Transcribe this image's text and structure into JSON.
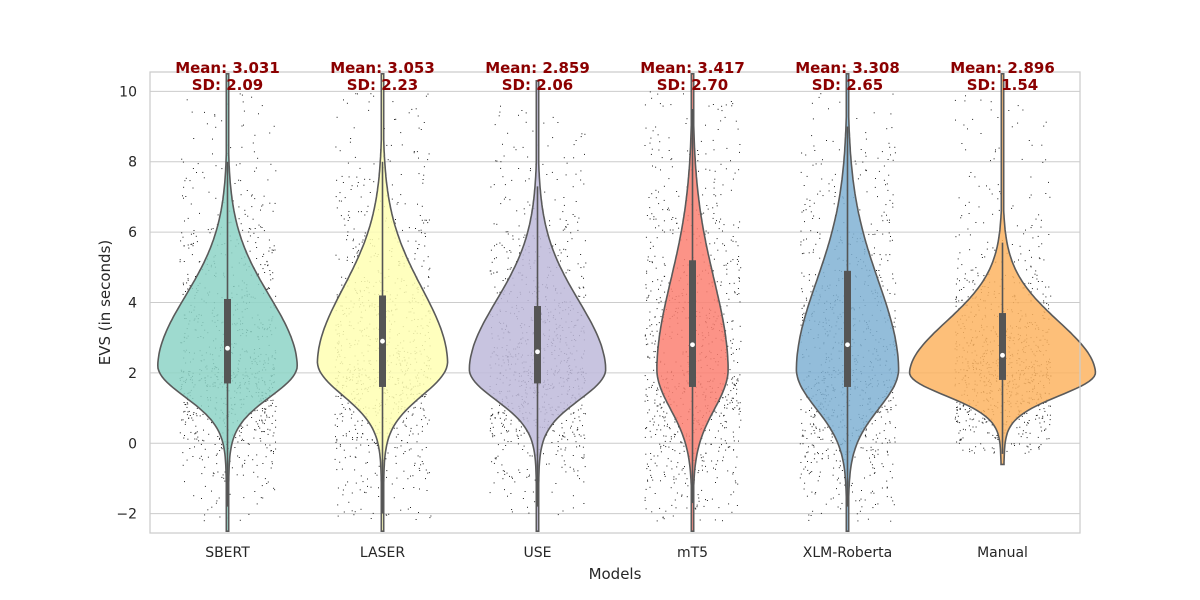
{
  "chart_data": {
    "type": "violin",
    "xlabel": "Models",
    "ylabel": "EVS (in seconds)",
    "ylim": [
      -2.55,
      10.55
    ],
    "yticks": [
      "−2",
      "0",
      "2",
      "4",
      "6",
      "8",
      "10"
    ],
    "grid": true,
    "annotation_color": "#8b0000",
    "categories": [
      "SBERT",
      "LASER",
      "USE",
      "mT5",
      "XLM-Roberta",
      "Manual"
    ],
    "series": [
      {
        "category": "SBERT",
        "color": "#8dd3c7",
        "mean": 3.031,
        "sd": 2.09,
        "mean_label": "Mean: 3.031",
        "sd_label": "SD: 2.09",
        "range": [
          -2.5,
          10.5
        ],
        "q1": 1.7,
        "median": 2.7,
        "q3": 4.1,
        "whisker": [
          -1.8,
          8.0
        ],
        "mode": 2.2,
        "peak_halfwidth": 0.45
      },
      {
        "category": "LASER",
        "color": "#ffffb3",
        "mean": 3.053,
        "sd": 2.23,
        "mean_label": "Mean: 3.053",
        "sd_label": "SD: 2.23",
        "range": [
          -2.5,
          10.5
        ],
        "q1": 1.6,
        "median": 2.9,
        "q3": 4.2,
        "whisker": [
          -2.0,
          8.0
        ],
        "mode": 2.3,
        "peak_halfwidth": 0.42
      },
      {
        "category": "USE",
        "color": "#bebada",
        "mean": 2.859,
        "sd": 2.06,
        "mean_label": "Mean: 2.859",
        "sd_label": "SD: 2.06",
        "range": [
          -2.5,
          10.3
        ],
        "q1": 1.7,
        "median": 2.6,
        "q3": 3.9,
        "whisker": [
          -1.8,
          7.3
        ],
        "mode": 2.1,
        "peak_halfwidth": 0.44
      },
      {
        "category": "mT5",
        "color": "#fb8072",
        "mean": 3.417,
        "sd": 2.7,
        "mean_label": "Mean: 3.417",
        "sd_label": "SD: 2.70",
        "range": [
          -2.5,
          10.5
        ],
        "q1": 1.6,
        "median": 2.8,
        "q3": 5.2,
        "whisker": [
          -1.7,
          9.5
        ],
        "mode": 2.1,
        "peak_halfwidth": 0.23
      },
      {
        "category": "XLM-Roberta",
        "color": "#80b1d3",
        "mean": 3.308,
        "sd": 2.65,
        "mean_label": "Mean: 3.308",
        "sd_label": "SD: 2.65",
        "range": [
          -2.5,
          10.5
        ],
        "q1": 1.6,
        "median": 2.8,
        "q3": 4.9,
        "whisker": [
          -1.8,
          9.0
        ],
        "mode": 2.1,
        "peak_halfwidth": 0.33
      },
      {
        "category": "Manual",
        "color": "#fdb462",
        "mean": 2.896,
        "sd": 1.54,
        "mean_label": "Mean: 2.896",
        "sd_label": "SD: 1.54",
        "range": [
          -0.6,
          10.5
        ],
        "q1": 1.8,
        "median": 2.5,
        "q3": 3.7,
        "whisker": [
          -0.3,
          5.7
        ],
        "mode": 2.0,
        "peak_halfwidth": 0.6
      }
    ]
  }
}
